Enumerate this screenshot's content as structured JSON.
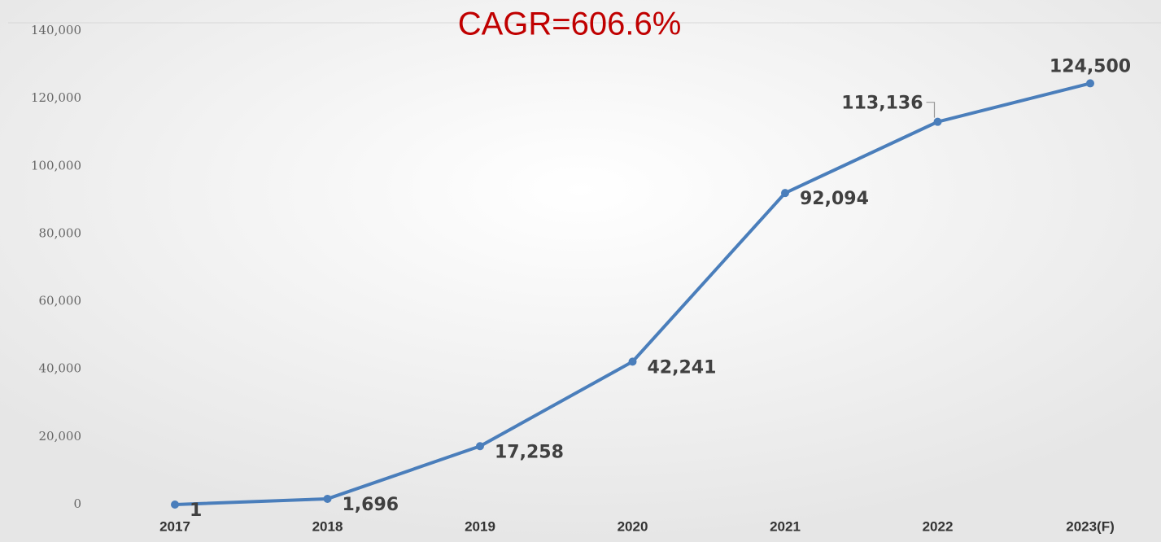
{
  "chart_data": {
    "type": "line",
    "title": "CAGR=606.6%",
    "categories": [
      "2017",
      "2018",
      "2019",
      "2020",
      "2021",
      "2022",
      "2023(F)"
    ],
    "series": [
      {
        "name": "Value",
        "color": "#4a7ebb",
        "values": [
          1,
          1696,
          17258,
          42241,
          92094,
          113136,
          124500
        ],
        "value_labels": [
          "1",
          "1,696",
          "17,258",
          "42,241",
          "92,094",
          "113,136",
          "124,500"
        ]
      }
    ],
    "ylim": [
      0,
      140000
    ],
    "yticks": [
      0,
      {
        "value": 20000,
        "label": "20,000"
      },
      {
        "value": 40000,
        "label": "40,000"
      },
      {
        "value": 60000,
        "label": "60,000"
      },
      {
        "value": 80000,
        "label": "80,000"
      },
      {
        "value": 100000,
        "label": "100,000"
      },
      {
        "value": 120000,
        "label": "120,000"
      },
      {
        "value": 140000,
        "label": "140,000"
      }
    ],
    "grid": false
  }
}
